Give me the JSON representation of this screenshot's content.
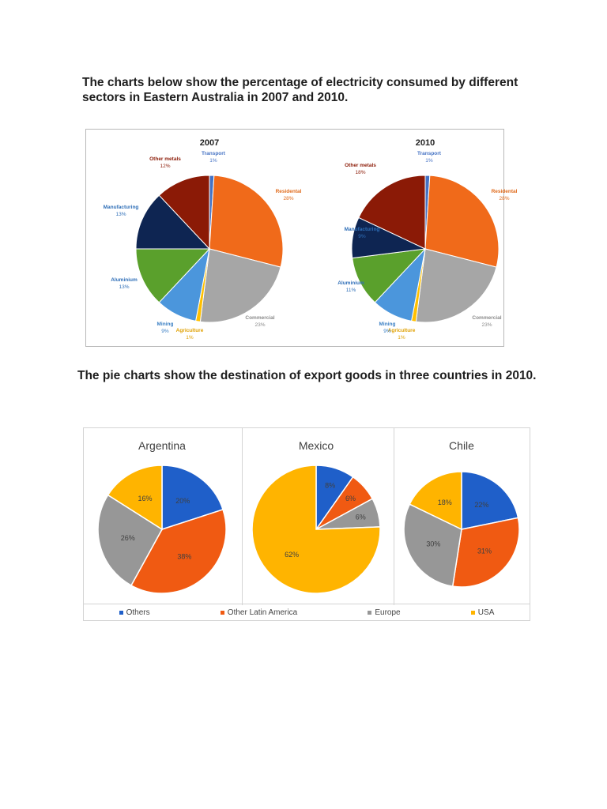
{
  "heading_1": "The charts below show the percentage of electricity consumed by different sectors in Eastern Australia in 2007 and 2010.",
  "heading_2": "The pie charts show the destination of export goods in three countries in 2010.",
  "colors": {
    "transport": "#4472c4",
    "residential": "#f06a1a",
    "commercial": "#a6a6a6",
    "agriculture": "#ffc000",
    "mining": "#4b96dc",
    "aluminium": "#5aa02c",
    "manufacturing": "#0e2552",
    "other_metals": "#8b1a06",
    "others": "#1f5fc9",
    "other_latin_america": "#f05a12",
    "europe": "#979797",
    "usa": "#ffb400"
  },
  "chart_data": [
    {
      "type": "pie",
      "title": "2007",
      "slices": [
        {
          "name": "Transport",
          "value": 1,
          "label": "1%",
          "color_key": "transport"
        },
        {
          "name": "Residental",
          "value": 28,
          "label": "28%",
          "color_key": "residential"
        },
        {
          "name": "Commercial",
          "value": 23,
          "label": "23%",
          "color_key": "commercial"
        },
        {
          "name": "Agriculture",
          "value": 1,
          "label": "1%",
          "color_key": "agriculture"
        },
        {
          "name": "Mining",
          "value": 9,
          "label": "9%",
          "color_key": "mining"
        },
        {
          "name": "Aluminium",
          "value": 13,
          "label": "13%",
          "color_key": "aluminium"
        },
        {
          "name": "Manufacturing",
          "value": 13,
          "label": "13%",
          "color_key": "manufacturing"
        },
        {
          "name": "Other metals",
          "value": 12,
          "label": "12%",
          "color_key": "other_metals"
        }
      ]
    },
    {
      "type": "pie",
      "title": "2010",
      "slices": [
        {
          "name": "Transport",
          "value": 1,
          "label": "1%",
          "color_key": "transport"
        },
        {
          "name": "Residental",
          "value": 28,
          "label": "28%",
          "color_key": "residential"
        },
        {
          "name": "Commercial",
          "value": 23,
          "label": "23%",
          "color_key": "commercial"
        },
        {
          "name": "Agriculture",
          "value": 1,
          "label": "1%",
          "color_key": "agriculture"
        },
        {
          "name": "Mining",
          "value": 9,
          "label": "9%",
          "color_key": "mining"
        },
        {
          "name": "Aluminium",
          "value": 11,
          "label": "11%",
          "color_key": "aluminium"
        },
        {
          "name": "Manufacturing",
          "value": 9,
          "label": "9%",
          "color_key": "manufacturing"
        },
        {
          "name": "Other metals",
          "value": 18,
          "label": "18%",
          "color_key": "other_metals"
        }
      ]
    },
    {
      "type": "pie",
      "title": "Argentina",
      "slices": [
        {
          "name": "Others",
          "value": 20,
          "label": "20%",
          "color_key": "others"
        },
        {
          "name": "Other Latin America",
          "value": 38,
          "label": "38%",
          "color_key": "other_latin_america"
        },
        {
          "name": "Europe",
          "value": 26,
          "label": "26%",
          "color_key": "europe"
        },
        {
          "name": "USA",
          "value": 16,
          "label": "16%",
          "color_key": "usa"
        }
      ]
    },
    {
      "type": "pie",
      "title": "Mexico",
      "slices": [
        {
          "name": "Others",
          "value": 8,
          "label": "8%",
          "color_key": "others"
        },
        {
          "name": "Other Latin America",
          "value": 6,
          "label": "6%",
          "color_key": "other_latin_america"
        },
        {
          "name": "Europe",
          "value": 6,
          "label": "6%",
          "color_key": "europe"
        },
        {
          "name": "USA",
          "value": 62,
          "label": "62%",
          "color_key": "usa"
        }
      ]
    },
    {
      "type": "pie",
      "title": "Chile",
      "slices": [
        {
          "name": "Others",
          "value": 22,
          "label": "22%",
          "color_key": "others"
        },
        {
          "name": "Other Latin America",
          "value": 31,
          "label": "31%",
          "color_key": "other_latin_america"
        },
        {
          "name": "Europe",
          "value": 30,
          "label": "30%",
          "color_key": "europe"
        },
        {
          "name": "USA",
          "value": 18,
          "label": "18%",
          "color_key": "usa"
        }
      ]
    }
  ],
  "legend": [
    {
      "label": "Others",
      "color_key": "others"
    },
    {
      "label": "Other Latin America",
      "color_key": "other_latin_america"
    },
    {
      "label": "Europe",
      "color_key": "europe"
    },
    {
      "label": "USA",
      "color_key": "usa"
    }
  ]
}
